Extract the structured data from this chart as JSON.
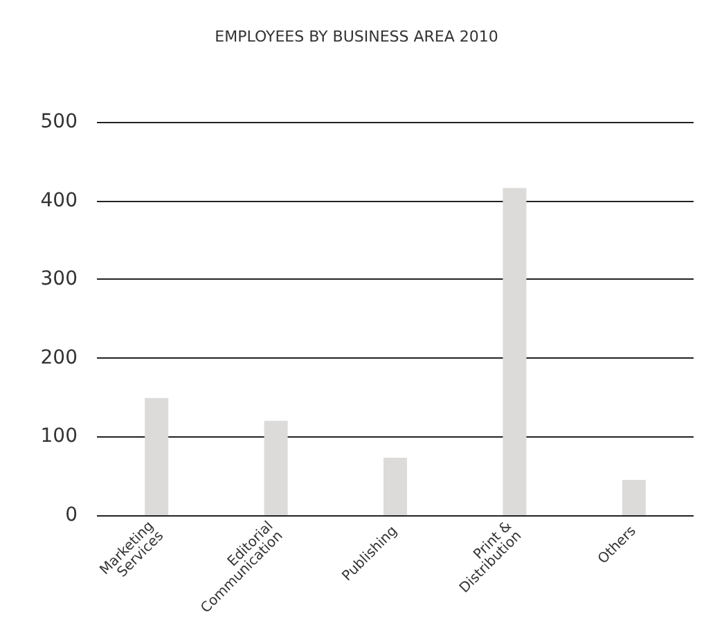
{
  "chart_data": {
    "type": "bar",
    "title": "EMPLOYEES BY BUSINESS AREA 2010",
    "categories": [
      "Marketing\nServices",
      "Editorial\nCommunication",
      "Publishing",
      "Print &\nDistribution",
      "Others"
    ],
    "values": [
      149,
      120,
      73,
      416,
      45
    ],
    "color": "#dcdbd9",
    "ylim": [
      0,
      500
    ],
    "yticks": [
      0,
      100,
      200,
      300,
      400,
      500
    ],
    "grid": "y"
  }
}
